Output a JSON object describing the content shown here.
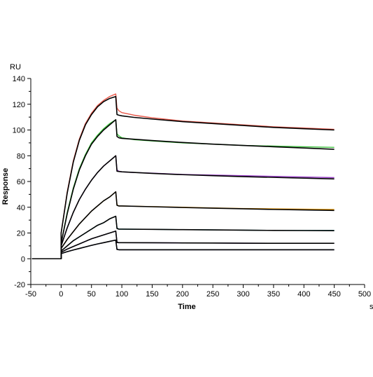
{
  "chart_data": {
    "type": "line",
    "title": "",
    "xlabel": "Time",
    "ylabel": "Response",
    "x_unit": "s",
    "y_unit": "RU",
    "xlim": [
      -50,
      500
    ],
    "ylim": [
      -20,
      140
    ],
    "x_ticks": [
      "-50",
      "0",
      "50",
      "100",
      "150",
      "200",
      "250",
      "300",
      "350",
      "400",
      "450",
      "500"
    ],
    "y_ticks": [
      "-20",
      "0",
      "20",
      "40",
      "60",
      "80",
      "100",
      "120",
      "140"
    ],
    "grid": false,
    "legend": "none",
    "series": [
      {
        "color": "#e8584a",
        "x": [
          -48,
          0,
          0,
          10,
          20,
          30,
          40,
          50,
          60,
          70,
          80,
          90,
          92,
          95,
          100,
          120,
          150,
          200,
          250,
          300,
          350,
          400,
          450
        ],
        "y": [
          0,
          0,
          20,
          52,
          76,
          93,
          105,
          113,
          119,
          123,
          126,
          128,
          117,
          115,
          113.5,
          111.5,
          109.5,
          107,
          105.5,
          104,
          102.5,
          101.5,
          100.5
        ]
      },
      {
        "color": "#3fc23f",
        "x": [
          -48,
          0,
          0,
          10,
          20,
          30,
          40,
          50,
          60,
          70,
          80,
          90,
          92,
          95,
          100,
          120,
          150,
          200,
          250,
          300,
          350,
          400,
          450
        ],
        "y": [
          0,
          0,
          12,
          36,
          55,
          70,
          81,
          90,
          96,
          101,
          105,
          108,
          97,
          95.5,
          94,
          92.5,
          91.5,
          90,
          89,
          88,
          87.5,
          87,
          86.5
        ]
      },
      {
        "color": "#9a3ec9",
        "x": [
          -48,
          0,
          0,
          10,
          20,
          30,
          40,
          50,
          60,
          70,
          80,
          90,
          92,
          95,
          100,
          120,
          150,
          200,
          250,
          300,
          350,
          400,
          450
        ],
        "y": [
          0,
          0,
          10,
          24,
          36,
          46,
          54,
          61,
          67,
          72,
          76,
          80,
          69,
          68,
          67.5,
          67,
          66.5,
          65.5,
          65,
          64.5,
          64,
          63.5,
          63
        ]
      },
      {
        "color": "#e8a020",
        "x": [
          -48,
          0,
          0,
          10,
          20,
          30,
          40,
          50,
          60,
          70,
          80,
          90,
          92,
          95,
          100,
          150,
          200,
          250,
          300,
          350,
          400,
          450
        ],
        "y": [
          0,
          0,
          8,
          15,
          21,
          27,
          32,
          37,
          41,
          45,
          48,
          52,
          42,
          41,
          41,
          40.5,
          40,
          39.5,
          39,
          38.8,
          38.5,
          38.3
        ]
      },
      {
        "color": "#1f8f8f",
        "x": [
          -48,
          0,
          0,
          10,
          20,
          30,
          40,
          50,
          60,
          70,
          80,
          90,
          92,
          95,
          100,
          150,
          200,
          250,
          300,
          350,
          400,
          450
        ],
        "y": [
          0,
          0,
          6,
          10,
          14,
          17,
          20,
          23,
          26,
          28,
          31,
          33,
          24,
          23,
          23,
          22.8,
          22.6,
          22.4,
          22.2,
          22,
          22,
          22
        ]
      },
      {
        "color": "#6a2fb0",
        "x": [
          -48,
          0,
          0,
          10,
          20,
          30,
          40,
          50,
          60,
          70,
          80,
          90,
          92,
          95,
          100,
          150,
          200,
          250,
          300,
          350,
          400,
          450
        ],
        "y": [
          0,
          0,
          5,
          7.5,
          9.5,
          11.5,
          13.5,
          15.5,
          17,
          18.5,
          20,
          21.5,
          13,
          12.5,
          12.5,
          12.4,
          12.3,
          12.2,
          12.1,
          12,
          12,
          12
        ]
      },
      {
        "color": "#2e3f8f",
        "x": [
          -48,
          0,
          0,
          10,
          20,
          30,
          40,
          50,
          60,
          70,
          80,
          90,
          92,
          95,
          100,
          150,
          200,
          250,
          300,
          350,
          400,
          450
        ],
        "y": [
          0,
          0,
          4,
          5.5,
          6.8,
          8,
          9.2,
          10.4,
          11.5,
          12.5,
          13.5,
          14.5,
          7.5,
          7,
          7,
          7,
          7,
          7,
          7,
          7,
          7,
          7
        ]
      },
      {
        "color": "#000000",
        "x": [
          -48,
          0,
          0,
          10,
          20,
          30,
          40,
          50,
          60,
          70,
          80,
          90,
          92,
          95,
          100,
          120,
          150,
          200,
          250,
          300,
          350,
          400,
          450
        ],
        "y": [
          0,
          0,
          20,
          51,
          75,
          92,
          104,
          112,
          118,
          122,
          124.5,
          126,
          112,
          111.5,
          111,
          109.8,
          108.5,
          106.5,
          105,
          103.5,
          102,
          101,
          100
        ]
      },
      {
        "color": "#000000",
        "x": [
          -48,
          0,
          0,
          10,
          20,
          30,
          40,
          50,
          60,
          70,
          80,
          90,
          92,
          95,
          100,
          120,
          150,
          200,
          250,
          300,
          350,
          400,
          450
        ],
        "y": [
          0,
          0,
          12,
          35,
          54,
          69,
          80,
          89,
          95,
          100,
          104,
          108,
          95,
          94,
          93.5,
          92.8,
          91.8,
          90.3,
          89,
          88,
          87,
          86,
          85
        ]
      },
      {
        "color": "#000000",
        "x": [
          -48,
          0,
          0,
          10,
          20,
          30,
          40,
          50,
          60,
          70,
          80,
          90,
          92,
          95,
          100,
          150,
          200,
          250,
          300,
          350,
          400,
          450
        ],
        "y": [
          0,
          0,
          10,
          24,
          36,
          46,
          54,
          61,
          67,
          72,
          76,
          80,
          68,
          67.8,
          67.5,
          66.3,
          65.3,
          64.5,
          63.8,
          63.2,
          62.6,
          62
        ]
      },
      {
        "color": "#000000",
        "x": [
          -48,
          0,
          0,
          10,
          20,
          30,
          40,
          50,
          60,
          70,
          80,
          90,
          92,
          95,
          100,
          150,
          200,
          250,
          300,
          350,
          400,
          450
        ],
        "y": [
          0,
          0,
          8,
          15,
          21,
          27,
          32,
          37,
          41,
          45,
          48,
          52,
          41.5,
          41,
          41,
          40.4,
          39.8,
          39.3,
          38.8,
          38.3,
          37.9,
          37.5
        ]
      },
      {
        "color": "#000000",
        "x": [
          -48,
          0,
          0,
          10,
          20,
          30,
          40,
          50,
          60,
          70,
          80,
          90,
          92,
          95,
          100,
          150,
          200,
          250,
          300,
          350,
          400,
          450
        ],
        "y": [
          0,
          0,
          6,
          10,
          14,
          17,
          20,
          23,
          26,
          28,
          31,
          33,
          23.5,
          23,
          23,
          22.8,
          22.6,
          22.4,
          22.2,
          22,
          21.9,
          21.8
        ]
      },
      {
        "color": "#000000",
        "x": [
          -48,
          0,
          0,
          10,
          20,
          30,
          40,
          50,
          60,
          70,
          80,
          90,
          92,
          95,
          100,
          150,
          200,
          250,
          300,
          350,
          400,
          450
        ],
        "y": [
          0,
          0,
          5,
          7.5,
          9.5,
          11.5,
          13.5,
          15.5,
          17,
          18.5,
          20,
          21.5,
          12.7,
          12.5,
          12.5,
          12.4,
          12.3,
          12.2,
          12.1,
          12,
          12,
          12
        ]
      },
      {
        "color": "#000000",
        "x": [
          -48,
          0,
          0,
          10,
          20,
          30,
          40,
          50,
          60,
          70,
          80,
          90,
          92,
          95,
          100,
          150,
          200,
          250,
          300,
          350,
          400,
          450
        ],
        "y": [
          0,
          0,
          4,
          5.5,
          6.8,
          8,
          9.2,
          10.4,
          11.5,
          12.5,
          13.5,
          14.5,
          7.2,
          7,
          7,
          7,
          7,
          7,
          7,
          7,
          7,
          7
        ]
      }
    ]
  }
}
